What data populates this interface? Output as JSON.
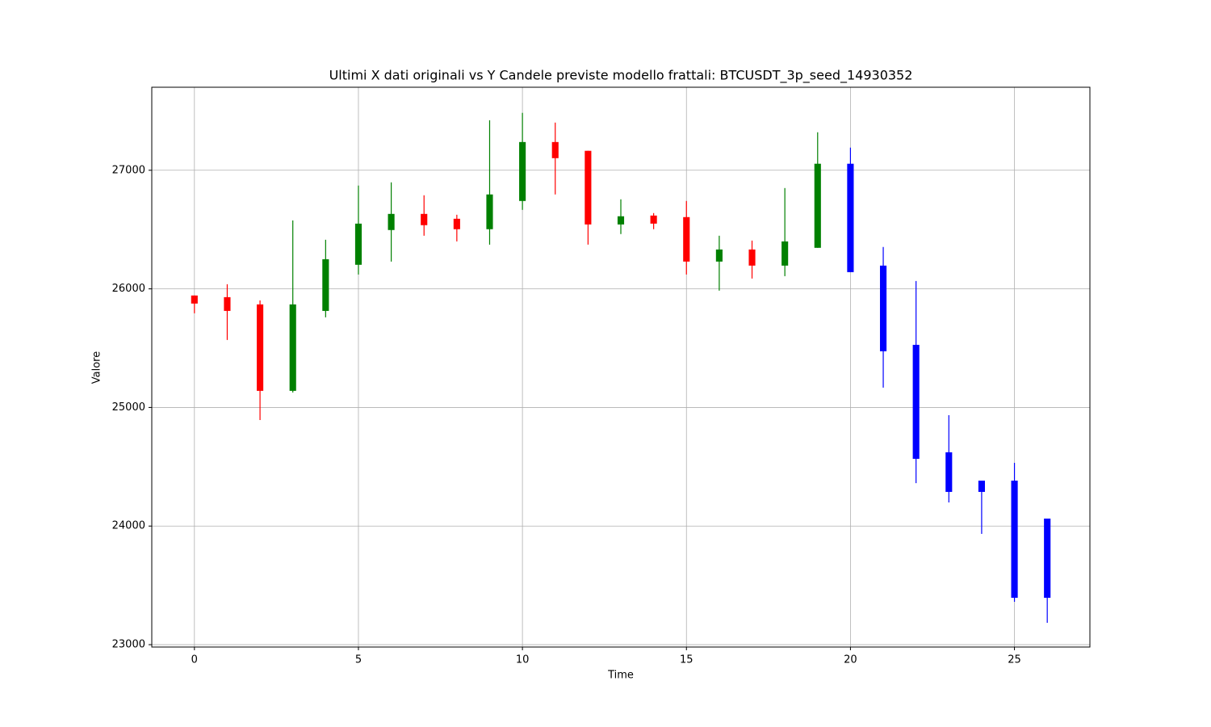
{
  "chart_data": {
    "type": "candlestick",
    "title": "Ultimi X dati originali vs Y Candele previste modello frattali: BTCUSDT_3p_seed_14930352",
    "x_label": "Time",
    "y_label": "Valore",
    "x": [
      0,
      1,
      2,
      3,
      4,
      5,
      6,
      7,
      8,
      9,
      10,
      11,
      12,
      13,
      14,
      15,
      16,
      17,
      18,
      19,
      20,
      21,
      22,
      23,
      24,
      25,
      26
    ],
    "open": [
      25944,
      25930,
      25869,
      25140,
      25814,
      26203,
      26496,
      26632,
      26591,
      26503,
      26741,
      27238,
      27164,
      26543,
      26618,
      26605,
      26230,
      26332,
      26196,
      26346,
      27055,
      26196,
      25528,
      24622,
      24383,
      24383,
      24063
    ],
    "high": [
      25944,
      26039,
      25903,
      26577,
      26414,
      26871,
      26898,
      26789,
      26625,
      27422,
      27484,
      27402,
      27164,
      26755,
      26639,
      26741,
      26448,
      26407,
      26850,
      27320,
      27191,
      26353,
      26066,
      24935,
      24383,
      24533,
      24063
    ],
    "low": [
      25794,
      25569,
      24894,
      25126,
      25760,
      26121,
      26230,
      26448,
      26400,
      26373,
      26666,
      26796,
      26373,
      26462,
      26503,
      26121,
      25985,
      26087,
      26107,
      26346,
      26141,
      25167,
      24362,
      24199,
      23934,
      23361,
      23184
    ],
    "close": [
      25876,
      25814,
      25140,
      25869,
      26250,
      26550,
      26632,
      26537,
      26503,
      26796,
      27238,
      27102,
      26543,
      26612,
      26550,
      26230,
      26332,
      26196,
      26400,
      27055,
      26141,
      25474,
      24567,
      24288,
      24288,
      23395,
      23395
    ],
    "colors": [
      "red",
      "red",
      "red",
      "green",
      "green",
      "green",
      "green",
      "red",
      "red",
      "green",
      "green",
      "red",
      "red",
      "green",
      "red",
      "red",
      "green",
      "red",
      "green",
      "green",
      "blue",
      "blue",
      "blue",
      "blue",
      "blue",
      "blue",
      "blue"
    ],
    "xlim": [
      -1.3,
      27.3
    ],
    "ylim": [
      22980,
      27700
    ],
    "xticks": [
      0,
      5,
      10,
      15,
      20,
      25
    ],
    "yticks": [
      23000,
      24000,
      25000,
      26000,
      27000
    ],
    "grid": true
  }
}
